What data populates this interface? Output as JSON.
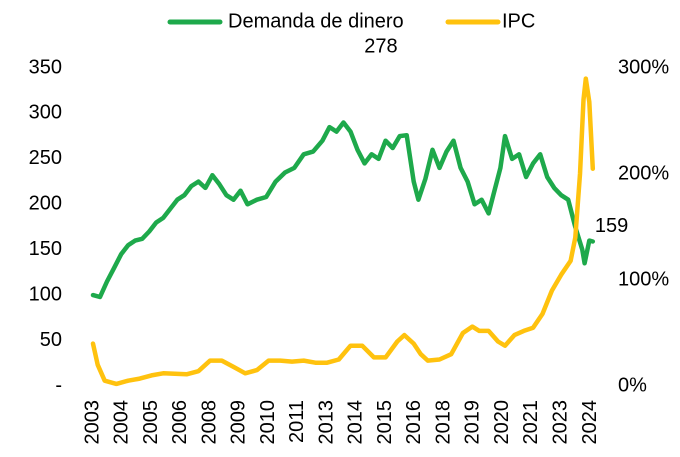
{
  "chart_data": {
    "type": "line",
    "series": [
      {
        "name": "Demanda de dinero",
        "color": "#1ea94b",
        "axis": "y",
        "x": [
          2003.0,
          2003.3,
          2003.6,
          2003.9,
          2004.2,
          2004.5,
          2004.8,
          2005.1,
          2005.4,
          2005.7,
          2006.0,
          2006.3,
          2006.6,
          2006.9,
          2007.2,
          2007.5,
          2007.8,
          2008.1,
          2008.4,
          2008.7,
          2009.0,
          2009.3,
          2009.6,
          2010.0,
          2010.4,
          2010.8,
          2011.2,
          2011.6,
          2012.0,
          2012.4,
          2012.8,
          2013.1,
          2013.4,
          2013.7,
          2014.0,
          2014.3,
          2014.6,
          2014.9,
          2015.2,
          2015.5,
          2015.8,
          2016.1,
          2016.4,
          2016.7,
          2016.9,
          2017.2,
          2017.5,
          2017.8,
          2018.1,
          2018.4,
          2018.7,
          2019.0,
          2019.3,
          2019.6,
          2019.9,
          2020.1,
          2020.4,
          2020.6,
          2020.9,
          2021.2,
          2021.5,
          2021.8,
          2022.1,
          2022.4,
          2022.7,
          2023.0,
          2023.3,
          2023.6,
          2023.9,
          2024.0,
          2024.2,
          2024.35
        ],
        "values": [
          100,
          98,
          115,
          130,
          145,
          155,
          160,
          162,
          170,
          180,
          185,
          195,
          205,
          210,
          220,
          225,
          218,
          232,
          222,
          210,
          205,
          215,
          200,
          205,
          208,
          225,
          235,
          240,
          255,
          258,
          270,
          285,
          280,
          290,
          280,
          260,
          245,
          255,
          250,
          270,
          262,
          275,
          276,
          225,
          205,
          228,
          260,
          240,
          258,
          270,
          240,
          225,
          200,
          205,
          190,
          210,
          240,
          275,
          250,
          255,
          230,
          245,
          255,
          230,
          218,
          210,
          205,
          175,
          150,
          135,
          160,
          159
        ]
      },
      {
        "name": "IPC",
        "color": "#ffc20e",
        "axis": "y2",
        "x": [
          2003.0,
          2003.2,
          2003.5,
          2004.0,
          2004.5,
          2005.0,
          2005.5,
          2006.0,
          2007.0,
          2007.5,
          2008.0,
          2008.5,
          2009.0,
          2009.5,
          2010.0,
          2010.5,
          2011.0,
          2011.5,
          2012.0,
          2012.5,
          2013.0,
          2013.5,
          2014.0,
          2014.5,
          2015.0,
          2015.5,
          2016.0,
          2016.3,
          2016.7,
          2017.0,
          2017.3,
          2017.8,
          2018.3,
          2018.8,
          2019.2,
          2019.5,
          2019.9,
          2020.3,
          2020.6,
          2021.0,
          2021.4,
          2021.8,
          2022.2,
          2022.6,
          2023.0,
          2023.4,
          2023.6,
          2023.8,
          2023.95,
          2024.05,
          2024.2,
          2024.35
        ],
        "values": [
          40,
          20,
          5,
          2,
          5,
          7,
          10,
          12,
          11,
          14,
          24,
          24,
          18,
          12,
          15,
          24,
          24,
          23,
          24,
          22,
          22,
          25,
          38,
          38,
          27,
          27,
          42,
          48,
          40,
          30,
          24,
          25,
          30,
          50,
          56,
          52,
          52,
          42,
          38,
          48,
          52,
          55,
          68,
          90,
          105,
          118,
          140,
          200,
          270,
          290,
          268,
          205
        ]
      }
    ],
    "xlim": [
      2003,
      2024.4
    ],
    "xticks": [
      {
        "value": 2003,
        "label": "2003"
      },
      {
        "value": 2004.25,
        "label": "2004"
      },
      {
        "value": 2005.5,
        "label": "2005"
      },
      {
        "value": 2006.75,
        "label": "2006"
      },
      {
        "value": 2008,
        "label": "2008"
      },
      {
        "value": 2009.25,
        "label": "2009"
      },
      {
        "value": 2010.5,
        "label": "2010"
      },
      {
        "value": 2011.75,
        "label": "2011"
      },
      {
        "value": 2013,
        "label": "2013"
      },
      {
        "value": 2014.25,
        "label": "2014"
      },
      {
        "value": 2015.5,
        "label": "2015"
      },
      {
        "value": 2016.75,
        "label": "2016"
      },
      {
        "value": 2018,
        "label": "2018"
      },
      {
        "value": 2019.25,
        "label": "2019"
      },
      {
        "value": 2020.5,
        "label": "2020"
      },
      {
        "value": 2021.75,
        "label": "2021"
      },
      {
        "value": 2023,
        "label": "2023"
      },
      {
        "value": 2024.25,
        "label": "2024"
      }
    ],
    "ylim": [
      0,
      350
    ],
    "yticks": [
      {
        "value": 0,
        "label": "-"
      },
      50,
      100,
      150,
      200,
      250,
      300,
      350
    ],
    "y2lim": [
      0,
      300
    ],
    "y2ticks": [
      {
        "value": 0,
        "label": "0%"
      },
      {
        "value": 100,
        "label": "100%"
      },
      {
        "value": 200,
        "label": "200%"
      },
      {
        "value": 300,
        "label": "300%"
      }
    ],
    "annotations": [
      {
        "label": "278",
        "x": 2015.3,
        "y": 278
      },
      {
        "label": "159",
        "x": 2024.35,
        "y": 159
      }
    ],
    "legend": "top"
  }
}
